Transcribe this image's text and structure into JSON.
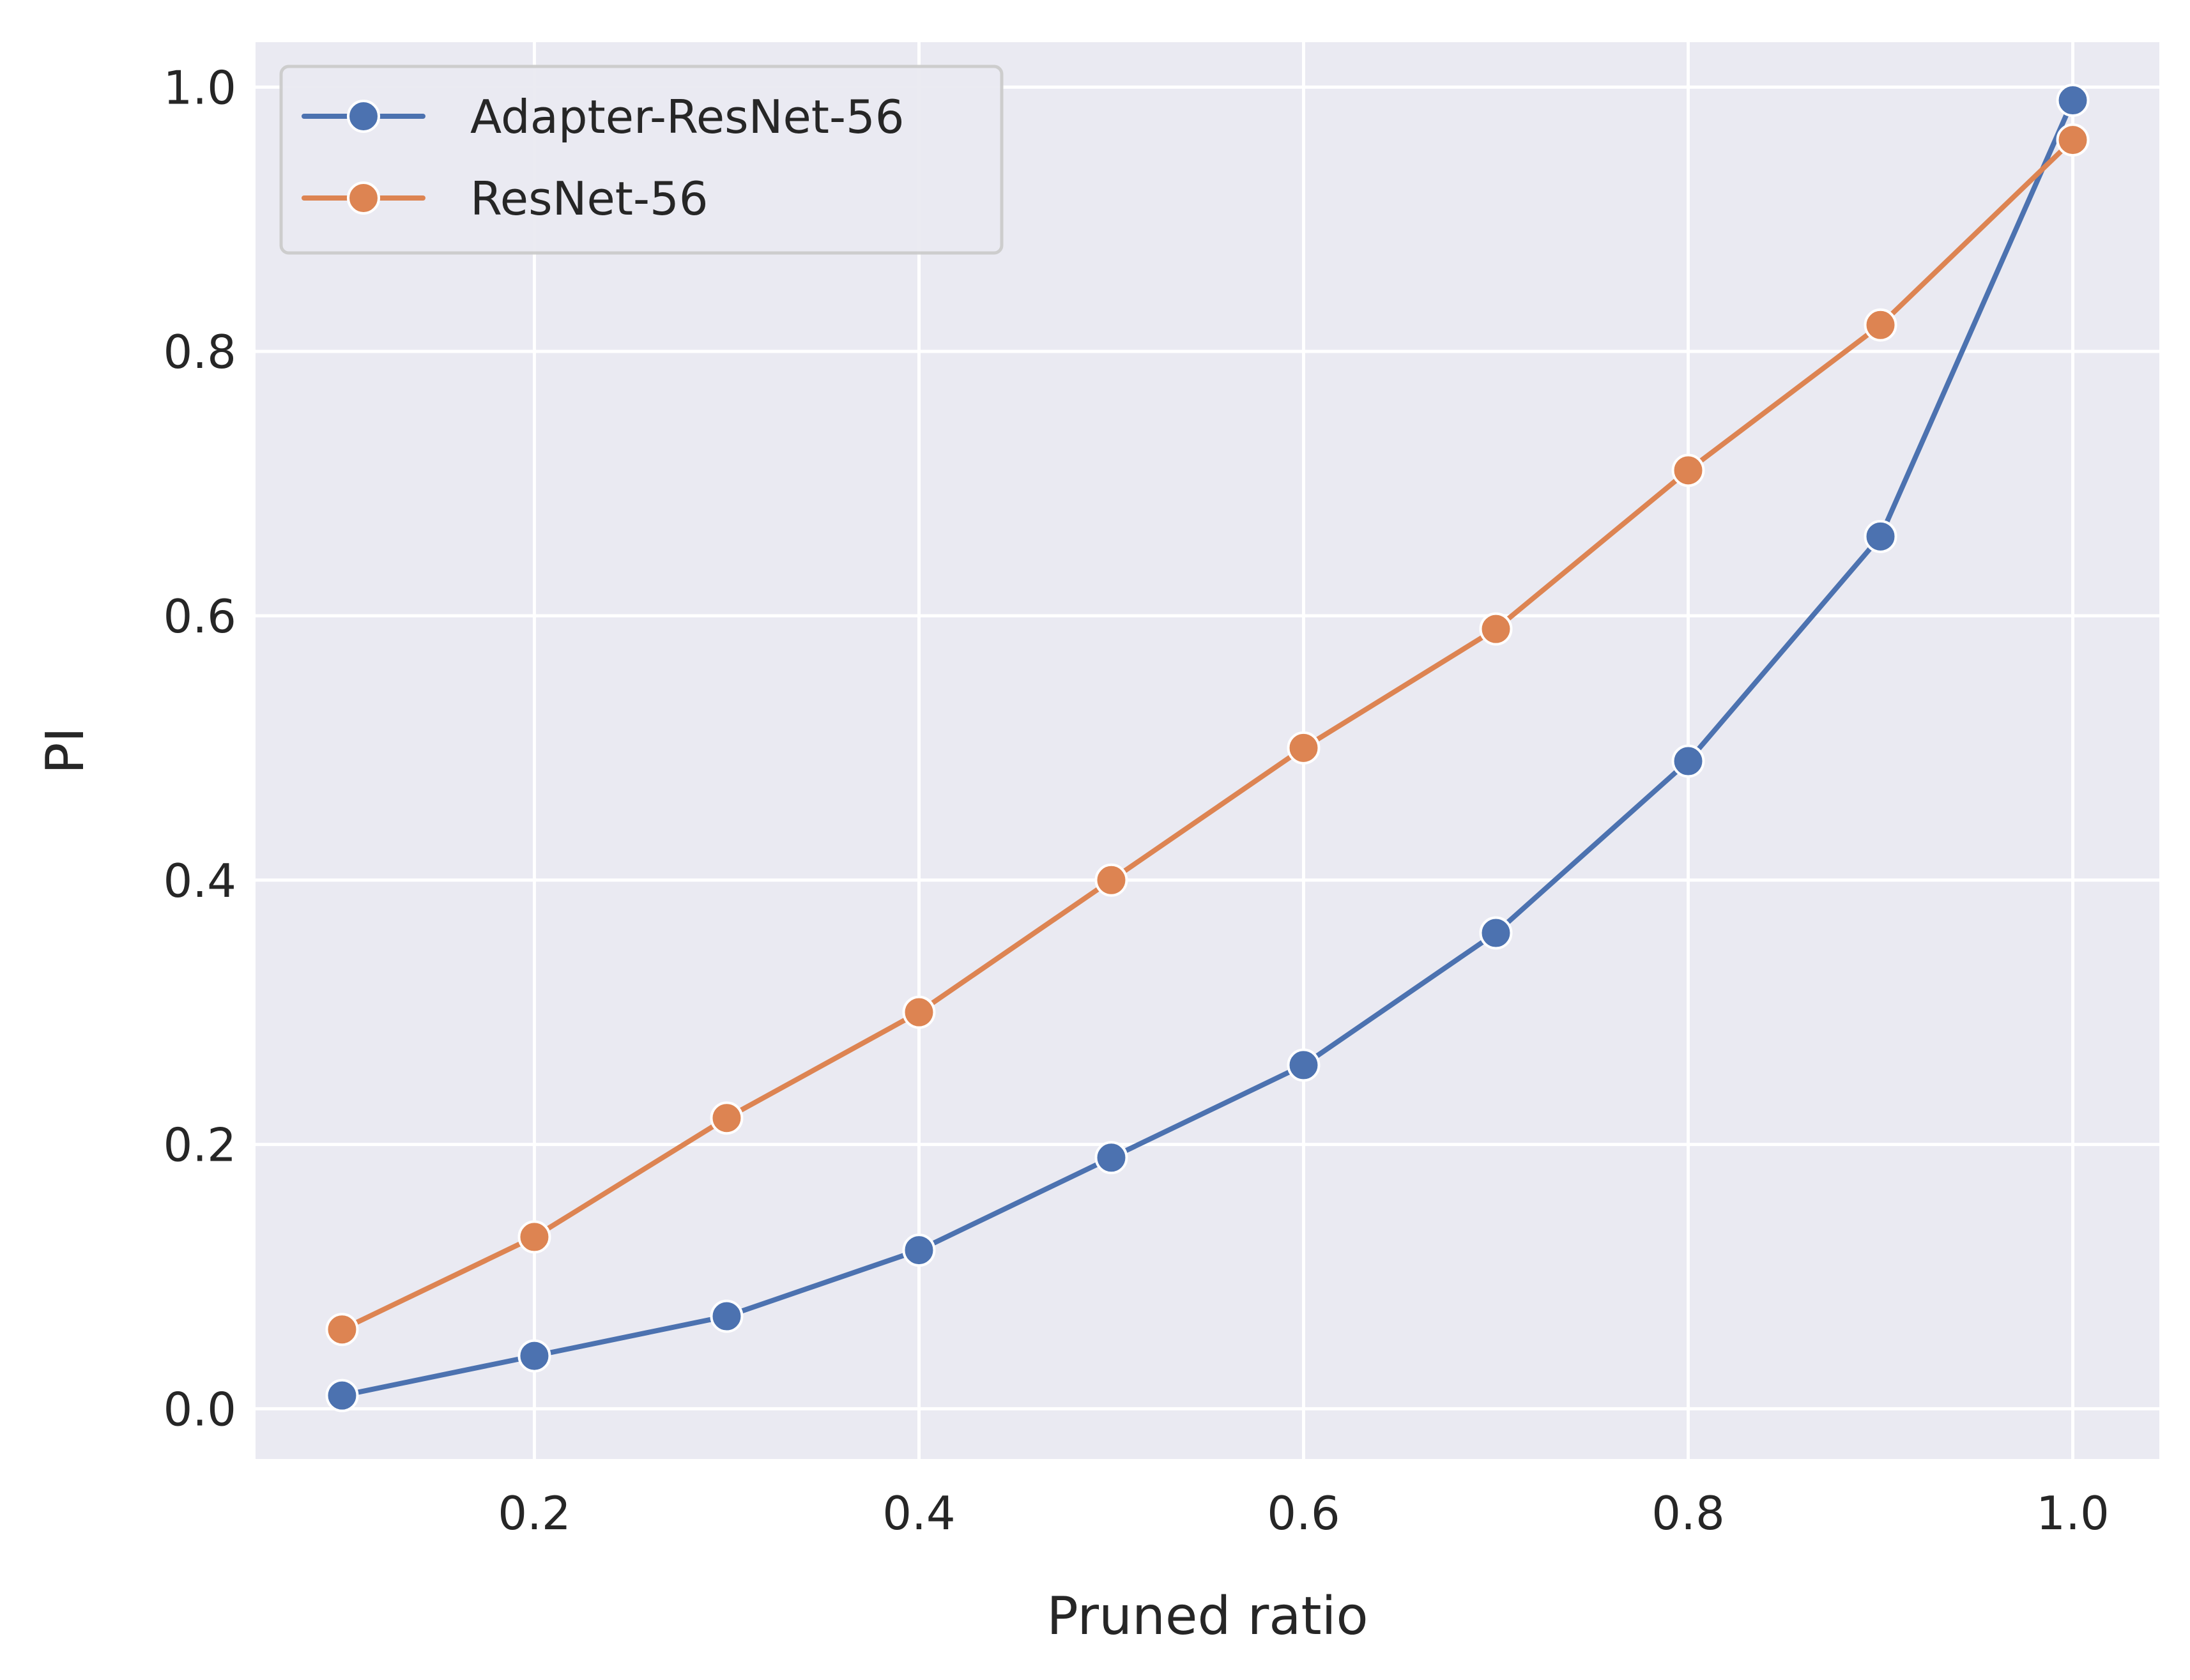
{
  "chart_data": {
    "type": "line",
    "title": "",
    "xlabel": "Pruned ratio",
    "ylabel": "PI",
    "xlim": [
      0.055,
      1.045
    ],
    "ylim": [
      -0.038,
      1.034
    ],
    "x_ticks": [
      0.2,
      0.4,
      0.6,
      0.8,
      1.0
    ],
    "x_tick_labels": [
      "0.2",
      "0.4",
      "0.6",
      "0.8",
      "1.0"
    ],
    "y_ticks": [
      0.0,
      0.2,
      0.4,
      0.6,
      0.8,
      1.0
    ],
    "y_tick_labels": [
      "0.0",
      "0.2",
      "0.4",
      "0.6",
      "0.8",
      "1.0"
    ],
    "grid": true,
    "legend_position": "top-left",
    "x": [
      0.1,
      0.2,
      0.3,
      0.4,
      0.5,
      0.6,
      0.7,
      0.8,
      0.9,
      1.0
    ],
    "series": [
      {
        "name": "Adapter-ResNet-56",
        "color": "#4c72b0",
        "marker": "circle",
        "values": [
          0.01,
          0.04,
          0.07,
          0.12,
          0.19,
          0.26,
          0.36,
          0.49,
          0.66,
          0.99
        ]
      },
      {
        "name": "ResNet-56",
        "color": "#dd8452",
        "marker": "circle",
        "values": [
          0.06,
          0.13,
          0.22,
          0.3,
          0.4,
          0.5,
          0.59,
          0.71,
          0.82,
          0.96
        ]
      }
    ],
    "style": {
      "plot_background": "#eaeaf2",
      "grid_color": "#ffffff",
      "text_color": "#262626"
    }
  }
}
